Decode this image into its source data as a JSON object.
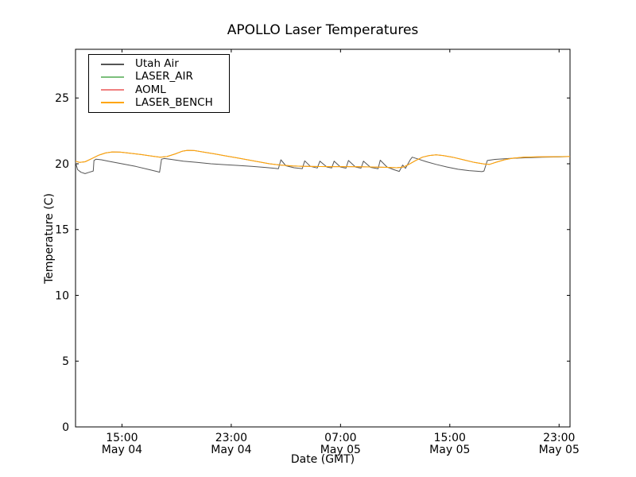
{
  "chart_data": {
    "type": "line",
    "title": "APOLLO Laser Temperatures",
    "xlabel": "Date (GMT)",
    "ylabel": "Temperature (C)",
    "x_hours_origin": "May 04 00:00 GMT",
    "xlim": [
      11.6,
      47.8
    ],
    "ylim": [
      0,
      28.7
    ],
    "yticks": [
      0,
      5,
      10,
      15,
      20,
      25
    ],
    "xticks": [
      {
        "hour": 15,
        "time": "15:00",
        "date": "May 04"
      },
      {
        "hour": 23,
        "time": "23:00",
        "date": "May 04"
      },
      {
        "hour": 31,
        "time": "07:00",
        "date": "May 05"
      },
      {
        "hour": 39,
        "time": "15:00",
        "date": "May 05"
      },
      {
        "hour": 47,
        "time": "23:00",
        "date": "May 05"
      }
    ],
    "grid": false,
    "legend_position": "upper left",
    "axis_color": "#000000",
    "background": "#ffffff",
    "series": [
      {
        "id": "utah-air",
        "name": "Utah Air",
        "color": "#555555",
        "points": [
          [
            11.6,
            20.1
          ],
          [
            11.75,
            19.55
          ],
          [
            12.0,
            19.35
          ],
          [
            12.3,
            19.25
          ],
          [
            12.6,
            19.35
          ],
          [
            12.9,
            19.45
          ],
          [
            12.95,
            20.25
          ],
          [
            13.1,
            20.35
          ],
          [
            13.5,
            20.3
          ],
          [
            14.0,
            20.2
          ],
          [
            15.0,
            20.0
          ],
          [
            16.0,
            19.8
          ],
          [
            17.0,
            19.55
          ],
          [
            17.6,
            19.4
          ],
          [
            17.75,
            19.35
          ],
          [
            17.9,
            20.35
          ],
          [
            18.1,
            20.4
          ],
          [
            18.5,
            20.35
          ],
          [
            19.5,
            20.2
          ],
          [
            20.5,
            20.1
          ],
          [
            21.5,
            20.0
          ],
          [
            22.5,
            19.93
          ],
          [
            23.5,
            19.87
          ],
          [
            24.5,
            19.8
          ],
          [
            25.5,
            19.72
          ],
          [
            26.2,
            19.65
          ],
          [
            26.45,
            19.62
          ],
          [
            26.63,
            20.3
          ],
          [
            27.0,
            19.85
          ],
          [
            27.6,
            19.7
          ],
          [
            28.2,
            19.63
          ],
          [
            28.38,
            20.22
          ],
          [
            28.8,
            19.8
          ],
          [
            29.3,
            19.68
          ],
          [
            29.49,
            20.2
          ],
          [
            30.0,
            19.75
          ],
          [
            30.35,
            19.68
          ],
          [
            30.53,
            20.2
          ],
          [
            31.0,
            19.75
          ],
          [
            31.4,
            19.67
          ],
          [
            31.58,
            20.25
          ],
          [
            32.1,
            19.75
          ],
          [
            32.5,
            19.67
          ],
          [
            32.68,
            20.2
          ],
          [
            33.2,
            19.73
          ],
          [
            33.75,
            19.62
          ],
          [
            33.91,
            20.27
          ],
          [
            34.4,
            19.75
          ],
          [
            34.9,
            19.55
          ],
          [
            35.3,
            19.42
          ],
          [
            35.55,
            19.9
          ],
          [
            35.75,
            19.65
          ],
          [
            36.1,
            20.3
          ],
          [
            36.25,
            20.5
          ],
          [
            36.7,
            20.35
          ],
          [
            37.3,
            20.15
          ],
          [
            38.0,
            19.95
          ],
          [
            38.8,
            19.75
          ],
          [
            39.6,
            19.58
          ],
          [
            40.4,
            19.48
          ],
          [
            41.0,
            19.43
          ],
          [
            41.35,
            19.4
          ],
          [
            41.5,
            19.45
          ],
          [
            41.75,
            20.25
          ],
          [
            42.3,
            20.33
          ],
          [
            43.3,
            20.4
          ],
          [
            44.5,
            20.45
          ],
          [
            45.8,
            20.5
          ],
          [
            47.0,
            20.52
          ],
          [
            47.8,
            20.55
          ]
        ]
      },
      {
        "id": "laser-air",
        "name": "LASER_AIR",
        "color": "#7cbf7c",
        "points": [
          [
            11.6,
            20.2
          ],
          [
            11.9,
            20.1
          ],
          [
            12.3,
            20.15
          ],
          [
            12.8,
            20.4
          ],
          [
            13.3,
            20.65
          ],
          [
            13.8,
            20.82
          ],
          [
            14.3,
            20.9
          ],
          [
            14.9,
            20.88
          ],
          [
            15.6,
            20.8
          ],
          [
            16.4,
            20.7
          ],
          [
            17.2,
            20.58
          ],
          [
            17.8,
            20.5
          ],
          [
            18.3,
            20.55
          ],
          [
            18.9,
            20.75
          ],
          [
            19.4,
            20.95
          ],
          [
            19.8,
            21.02
          ],
          [
            20.3,
            21.0
          ],
          [
            21.0,
            20.88
          ],
          [
            21.8,
            20.75
          ],
          [
            22.6,
            20.6
          ],
          [
            23.4,
            20.45
          ],
          [
            24.2,
            20.3
          ],
          [
            25.0,
            20.15
          ],
          [
            25.8,
            20.0
          ],
          [
            26.6,
            19.9
          ],
          [
            27.5,
            19.83
          ],
          [
            28.5,
            19.8
          ],
          [
            29.5,
            19.79
          ],
          [
            30.5,
            19.78
          ],
          [
            31.5,
            19.78
          ],
          [
            32.5,
            19.77
          ],
          [
            33.5,
            19.75
          ],
          [
            34.4,
            19.73
          ],
          [
            35.1,
            19.7
          ],
          [
            35.6,
            19.75
          ],
          [
            36.0,
            19.95
          ],
          [
            36.5,
            20.25
          ],
          [
            37.0,
            20.5
          ],
          [
            37.5,
            20.63
          ],
          [
            38.0,
            20.68
          ],
          [
            38.5,
            20.63
          ],
          [
            39.2,
            20.5
          ],
          [
            40.0,
            20.3
          ],
          [
            40.8,
            20.1
          ],
          [
            41.5,
            19.98
          ],
          [
            41.9,
            19.95
          ],
          [
            42.4,
            20.12
          ],
          [
            43.0,
            20.3
          ],
          [
            43.6,
            20.42
          ],
          [
            44.4,
            20.5
          ],
          [
            45.5,
            20.53
          ],
          [
            46.6,
            20.54
          ],
          [
            47.8,
            20.55
          ]
        ]
      },
      {
        "id": "aoml",
        "name": "AOML",
        "color": "#f08080",
        "points": [
          [
            11.6,
            20.2
          ],
          [
            11.9,
            20.1
          ],
          [
            12.3,
            20.15
          ],
          [
            12.8,
            20.4
          ],
          [
            13.3,
            20.65
          ],
          [
            13.8,
            20.82
          ],
          [
            14.3,
            20.9
          ],
          [
            14.9,
            20.88
          ],
          [
            15.6,
            20.8
          ],
          [
            16.4,
            20.7
          ],
          [
            17.2,
            20.58
          ],
          [
            17.8,
            20.5
          ],
          [
            18.3,
            20.55
          ],
          [
            18.9,
            20.75
          ],
          [
            19.4,
            20.95
          ],
          [
            19.8,
            21.02
          ],
          [
            20.3,
            21.0
          ],
          [
            21.0,
            20.88
          ],
          [
            21.8,
            20.75
          ],
          [
            22.6,
            20.6
          ],
          [
            23.4,
            20.45
          ],
          [
            24.2,
            20.3
          ],
          [
            25.0,
            20.15
          ],
          [
            25.8,
            20.0
          ],
          [
            26.6,
            19.9
          ],
          [
            27.5,
            19.83
          ],
          [
            28.5,
            19.8
          ],
          [
            29.5,
            19.79
          ],
          [
            30.5,
            19.78
          ],
          [
            31.5,
            19.78
          ],
          [
            32.5,
            19.77
          ],
          [
            33.5,
            19.75
          ],
          [
            34.4,
            19.73
          ],
          [
            35.1,
            19.7
          ],
          [
            35.6,
            19.75
          ],
          [
            36.0,
            19.95
          ],
          [
            36.5,
            20.25
          ],
          [
            37.0,
            20.5
          ],
          [
            37.5,
            20.63
          ],
          [
            38.0,
            20.68
          ],
          [
            38.5,
            20.63
          ],
          [
            39.2,
            20.5
          ],
          [
            40.0,
            20.3
          ],
          [
            40.8,
            20.1
          ],
          [
            41.5,
            19.98
          ],
          [
            41.9,
            19.95
          ],
          [
            42.4,
            20.12
          ],
          [
            43.0,
            20.3
          ],
          [
            43.6,
            20.42
          ],
          [
            44.4,
            20.5
          ],
          [
            45.5,
            20.53
          ],
          [
            46.6,
            20.54
          ],
          [
            47.8,
            20.55
          ]
        ]
      },
      {
        "id": "laser-bench",
        "name": "LASER_BENCH",
        "color": "#ffa500",
        "points": [
          [
            11.6,
            20.2
          ],
          [
            11.9,
            20.1
          ],
          [
            12.3,
            20.15
          ],
          [
            12.8,
            20.4
          ],
          [
            13.3,
            20.65
          ],
          [
            13.8,
            20.82
          ],
          [
            14.3,
            20.9
          ],
          [
            14.9,
            20.88
          ],
          [
            15.6,
            20.8
          ],
          [
            16.4,
            20.7
          ],
          [
            17.2,
            20.58
          ],
          [
            17.8,
            20.5
          ],
          [
            18.3,
            20.55
          ],
          [
            18.9,
            20.75
          ],
          [
            19.4,
            20.95
          ],
          [
            19.8,
            21.02
          ],
          [
            20.3,
            21.0
          ],
          [
            21.0,
            20.88
          ],
          [
            21.8,
            20.75
          ],
          [
            22.6,
            20.6
          ],
          [
            23.4,
            20.45
          ],
          [
            24.2,
            20.3
          ],
          [
            25.0,
            20.15
          ],
          [
            25.8,
            20.0
          ],
          [
            26.6,
            19.9
          ],
          [
            27.5,
            19.83
          ],
          [
            28.5,
            19.8
          ],
          [
            29.5,
            19.79
          ],
          [
            30.5,
            19.78
          ],
          [
            31.5,
            19.78
          ],
          [
            32.5,
            19.77
          ],
          [
            33.5,
            19.75
          ],
          [
            34.4,
            19.73
          ],
          [
            35.1,
            19.7
          ],
          [
            35.6,
            19.75
          ],
          [
            36.0,
            19.95
          ],
          [
            36.5,
            20.25
          ],
          [
            37.0,
            20.5
          ],
          [
            37.5,
            20.63
          ],
          [
            38.0,
            20.68
          ],
          [
            38.5,
            20.63
          ],
          [
            39.2,
            20.5
          ],
          [
            40.0,
            20.3
          ],
          [
            40.8,
            20.1
          ],
          [
            41.5,
            19.98
          ],
          [
            41.9,
            19.95
          ],
          [
            42.4,
            20.12
          ],
          [
            43.0,
            20.3
          ],
          [
            43.6,
            20.42
          ],
          [
            44.4,
            20.5
          ],
          [
            45.5,
            20.53
          ],
          [
            46.6,
            20.54
          ],
          [
            47.8,
            20.55
          ]
        ]
      }
    ]
  }
}
